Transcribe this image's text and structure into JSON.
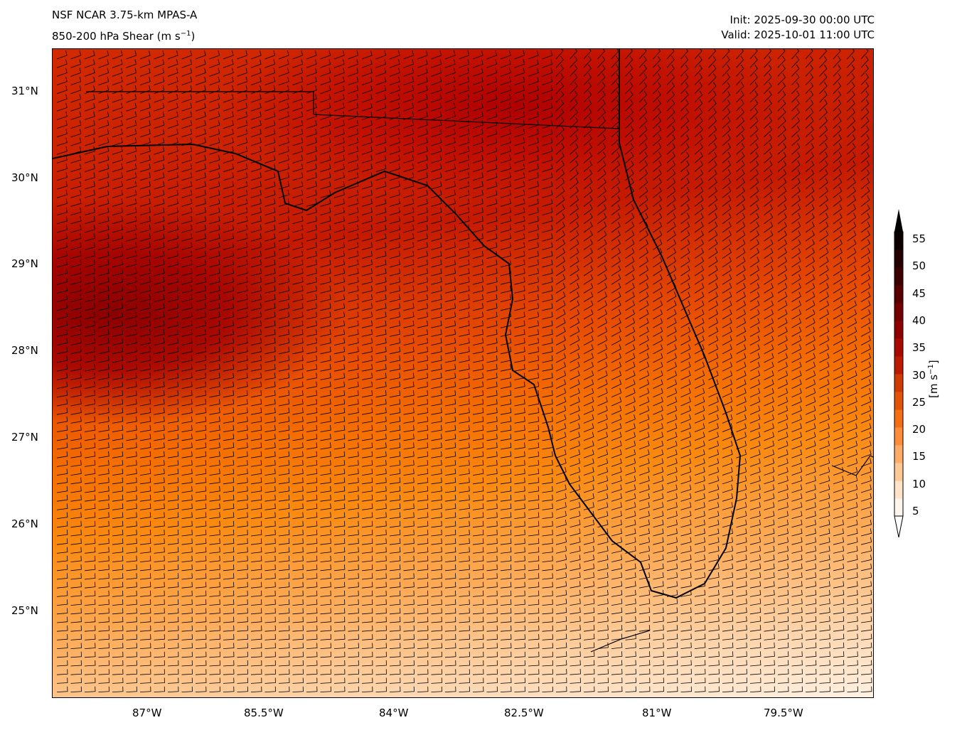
{
  "header": {
    "title": "NSF NCAR 3.75-km MPAS-A",
    "field": "850-200 hPa Shear (m s",
    "field_sup": "−1",
    "field_end": ")",
    "init": "Init: 2025-09-30 00:00 UTC",
    "valid": "Valid: 2025-10-01 11:00 UTC"
  },
  "axes": {
    "lat_ticks": [
      "31°N",
      "30°N",
      "29°N",
      "28°N",
      "27°N",
      "26°N",
      "25°N"
    ],
    "lon_ticks": [
      "87°W",
      "85.5°W",
      "84°W",
      "82.5°W",
      "81°W",
      "79.5°W"
    ]
  },
  "colorbar": {
    "label": "[m s",
    "label_sup": "−1",
    "label_end": "]",
    "ticks": [
      "55",
      "50",
      "45",
      "40",
      "35",
      "30",
      "25",
      "20",
      "15",
      "10",
      "5"
    ],
    "colors": [
      "#fff5eb",
      "#fee3c8",
      "#fdc895",
      "#fdab67",
      "#fd8c3b",
      "#f46e12",
      "#e25508",
      "#d03b02",
      "#bc1b00",
      "#a80a00",
      "#8f0000",
      "#740000",
      "#580000",
      "#3d0000",
      "#240000",
      "#0d0000"
    ]
  }
}
